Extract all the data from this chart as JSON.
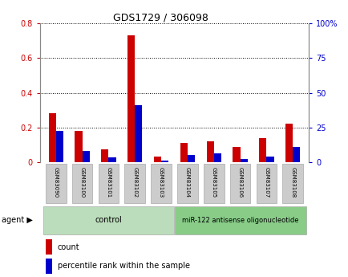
{
  "title": "GDS1729 / 306098",
  "samples": [
    "GSM83090",
    "GSM83100",
    "GSM83101",
    "GSM83102",
    "GSM83103",
    "GSM83104",
    "GSM83105",
    "GSM83106",
    "GSM83107",
    "GSM83108"
  ],
  "red_values": [
    0.28,
    0.18,
    0.075,
    0.73,
    0.03,
    0.11,
    0.12,
    0.085,
    0.14,
    0.22
  ],
  "blue_values": [
    0.18,
    0.065,
    0.025,
    0.33,
    0.01,
    0.04,
    0.05,
    0.02,
    0.03,
    0.085
  ],
  "ylim_left": [
    0,
    0.8
  ],
  "ylim_right": [
    0,
    100
  ],
  "yticks_left": [
    0.0,
    0.2,
    0.4,
    0.6,
    0.8
  ],
  "ytick_labels_left": [
    "0",
    "0.2",
    "0.4",
    "0.6",
    "0.8"
  ],
  "yticks_right": [
    0,
    25,
    50,
    75,
    100
  ],
  "ytick_labels_right": [
    "0",
    "25",
    "50",
    "75",
    "100%"
  ],
  "n_control": 5,
  "control_label": "control",
  "treatment_label": "miR-122 antisense oligonucleotide",
  "agent_label": "agent",
  "legend_red": "count",
  "legend_blue": "percentile rank within the sample",
  "red_color": "#cc0000",
  "blue_color": "#0000cc",
  "control_bg": "#bbddbb",
  "treatment_bg": "#88cc88",
  "sample_label_bg": "#cccccc",
  "sample_label_edge": "#aaaaaa"
}
